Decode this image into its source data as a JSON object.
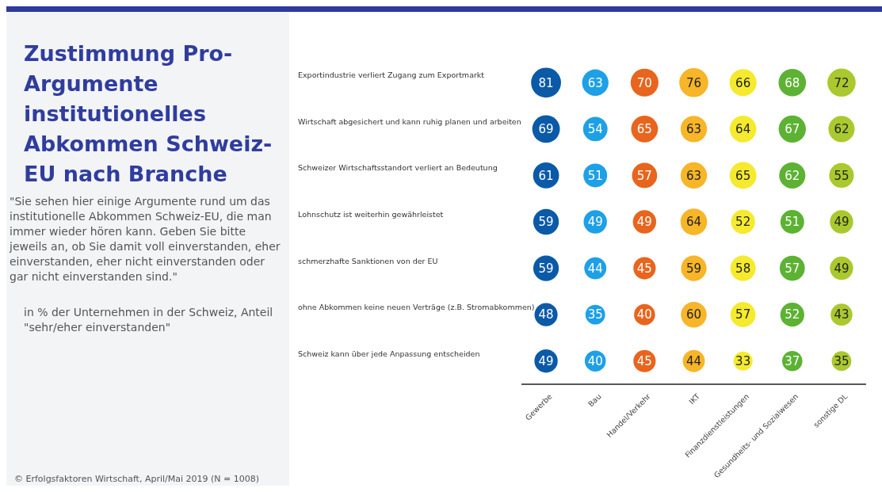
{
  "chart_data": {
    "type": "heatmap",
    "title": "Zustimmung Pro-Argumente institutionelles Abkommen Schweiz-EU nach Branche",
    "subtitle": "\"Sie sehen hier einige Argumente rund um das institutionelle Abkommen Schweiz-EU, die man immer wieder hören kann. Geben Sie bitte jeweils an, ob Sie damit voll einverstanden, eher einverstanden, eher nicht einverstanden oder gar nicht einverstanden sind.\"",
    "annotations": [
      "in % der Unternehmen in der Schweiz, Anteil \"sehr/eher einverstanden\"",
      "© Erfolgsfaktoren Wirtschaft, April/Mai 2019 (N = 1008)"
    ],
    "categories": [
      "Gewerbe",
      "Bau",
      "Handel/Verkehr",
      "IKT",
      "Finanzdienstleistungen",
      "Gesundheits- und Sozialwesen",
      "sonstige DL"
    ],
    "y_categories": [
      "Exportindustrie verliert Zugang zum Exportmarkt",
      "Wirtschaft abgesichert und kann ruhig planen und arbeiten",
      "Schweizer Wirtschaftsstandort verliert an Bedeutung",
      "Lohnschutz ist weiterhin gewährleistet",
      "schmerzhafte Sanktionen von der EU",
      "ohne Abkommen keine neuen Verträge (z.B. Stromabkommen)",
      "Schweiz kann über jede Anpassung entscheiden"
    ],
    "cells": [
      [
        81,
        63,
        70,
        76,
        66,
        68,
        72
      ],
      [
        69,
        54,
        65,
        63,
        64,
        67,
        62
      ],
      [
        61,
        51,
        57,
        63,
        65,
        62,
        55
      ],
      [
        59,
        49,
        49,
        64,
        52,
        51,
        49
      ],
      [
        59,
        44,
        45,
        59,
        58,
        57,
        49
      ],
      [
        48,
        35,
        40,
        60,
        57,
        52,
        43
      ],
      [
        49,
        40,
        45,
        44,
        33,
        37,
        35
      ]
    ],
    "colors": [
      "#0b5aa8",
      "#1ea0e6",
      "#e8651e",
      "#f7b528",
      "#f5ea2e",
      "#5db234",
      "#a9c92e"
    ],
    "data_labels": true
  }
}
